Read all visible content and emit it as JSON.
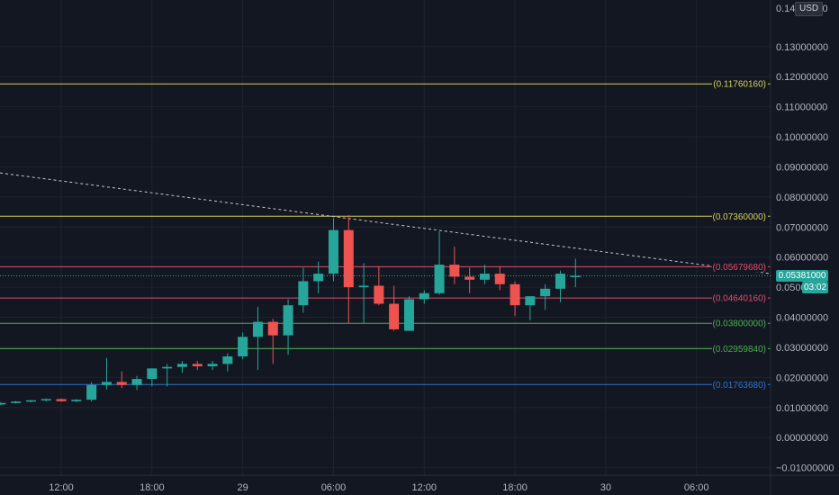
{
  "currency": "USD",
  "top_partial_label": "0.14",
  "top_partial_tail": "00",
  "current_price": "0.05381000",
  "countdown": "03:02",
  "chart_data": {
    "type": "candlestick",
    "title": "",
    "y_ticks": [
      "0.13000000",
      "0.12000000",
      "0.11000000",
      "0.10000000",
      "0.09000000",
      "0.08000000",
      "0.07000000",
      "0.06000000",
      "0.05000000",
      "0.04000000",
      "0.03000000",
      "0.02000000",
      "0.01000000",
      "0.00000000",
      "−0.01000000"
    ],
    "y_tick_values": [
      0.13,
      0.12,
      0.11,
      0.1,
      0.09,
      0.08,
      0.07,
      0.06,
      0.05,
      0.04,
      0.03,
      0.02,
      0.01,
      0.0,
      -0.01
    ],
    "ylim": [
      -0.0125,
      0.1455
    ],
    "x_ticks": [
      "12:00",
      "18:00",
      "29",
      "06:00",
      "12:00",
      "18:00",
      "30",
      "06:00"
    ],
    "x_tick_hours": [
      12,
      18,
      24,
      30,
      36,
      42,
      48,
      54
    ],
    "xlim_hours": [
      7.95,
      58.9
    ],
    "horizontal_levels": [
      {
        "label": "(0.11760160)",
        "value": 0.1176016,
        "color": "#d6cf5a"
      },
      {
        "label": "(0.07360000)",
        "value": 0.0736,
        "color": "#d6cf5a"
      },
      {
        "label": "(0.05679680)",
        "value": 0.0567968,
        "color": "#e04d6e"
      },
      {
        "label": "(0.04640160)",
        "value": 0.0464016,
        "color": "#e04d6e"
      },
      {
        "label": "(0.03800000)",
        "value": 0.038,
        "color": "#4caf50"
      },
      {
        "label": "(0.02959840)",
        "value": 0.0295984,
        "color": "#4caf50"
      },
      {
        "label": "(0.01763680)",
        "value": 0.0176368,
        "color": "#2f73d0"
      }
    ],
    "trendline": {
      "start": {
        "hour": 7.95,
        "value": 0.088
      },
      "end": {
        "hour": 58.9,
        "value": 0.0545
      },
      "color": "#c8c8c8",
      "style": "dashed"
    },
    "current_price_value": 0.05381,
    "candles": [
      {
        "t": 8.0,
        "o": 0.011,
        "h": 0.0118,
        "l": 0.0108,
        "c": 0.0115
      },
      {
        "t": 9.0,
        "o": 0.0115,
        "h": 0.0122,
        "l": 0.0113,
        "c": 0.012
      },
      {
        "t": 10.0,
        "o": 0.012,
        "h": 0.0125,
        "l": 0.0117,
        "c": 0.0124
      },
      {
        "t": 11.0,
        "o": 0.0124,
        "h": 0.013,
        "l": 0.012,
        "c": 0.0128
      },
      {
        "t": 12.0,
        "o": 0.0128,
        "h": 0.013,
        "l": 0.0119,
        "c": 0.0121
      },
      {
        "t": 13.0,
        "o": 0.0121,
        "h": 0.0128,
        "l": 0.0118,
        "c": 0.0126
      },
      {
        "t": 14.0,
        "o": 0.0126,
        "h": 0.0185,
        "l": 0.012,
        "c": 0.0175
      },
      {
        "t": 15.0,
        "o": 0.0175,
        "h": 0.0265,
        "l": 0.016,
        "c": 0.0185
      },
      {
        "t": 16.0,
        "o": 0.0185,
        "h": 0.022,
        "l": 0.0165,
        "c": 0.0175
      },
      {
        "t": 17.0,
        "o": 0.0175,
        "h": 0.0205,
        "l": 0.0158,
        "c": 0.0195
      },
      {
        "t": 18.0,
        "o": 0.0195,
        "h": 0.023,
        "l": 0.017,
        "c": 0.023
      },
      {
        "t": 19.0,
        "o": 0.023,
        "h": 0.0245,
        "l": 0.017,
        "c": 0.0235
      },
      {
        "t": 20.0,
        "o": 0.0235,
        "h": 0.0255,
        "l": 0.0215,
        "c": 0.0245
      },
      {
        "t": 21.0,
        "o": 0.0245,
        "h": 0.0255,
        "l": 0.0225,
        "c": 0.0237
      },
      {
        "t": 22.0,
        "o": 0.0237,
        "h": 0.0255,
        "l": 0.0225,
        "c": 0.0245
      },
      {
        "t": 23.0,
        "o": 0.0245,
        "h": 0.028,
        "l": 0.022,
        "c": 0.027
      },
      {
        "t": 24.0,
        "o": 0.027,
        "h": 0.035,
        "l": 0.026,
        "c": 0.0335
      },
      {
        "t": 25.0,
        "o": 0.0335,
        "h": 0.0435,
        "l": 0.0225,
        "c": 0.0385
      },
      {
        "t": 26.0,
        "o": 0.0385,
        "h": 0.0395,
        "l": 0.0245,
        "c": 0.034
      },
      {
        "t": 27.0,
        "o": 0.034,
        "h": 0.046,
        "l": 0.0275,
        "c": 0.044
      },
      {
        "t": 28.0,
        "o": 0.044,
        "h": 0.0565,
        "l": 0.0415,
        "c": 0.052
      },
      {
        "t": 29.0,
        "o": 0.052,
        "h": 0.0585,
        "l": 0.048,
        "c": 0.0545
      },
      {
        "t": 30.0,
        "o": 0.0545,
        "h": 0.073,
        "l": 0.052,
        "c": 0.069
      },
      {
        "t": 31.0,
        "o": 0.069,
        "h": 0.074,
        "l": 0.038,
        "c": 0.05
      },
      {
        "t": 32.0,
        "o": 0.05,
        "h": 0.058,
        "l": 0.038,
        "c": 0.0505
      },
      {
        "t": 33.0,
        "o": 0.0505,
        "h": 0.057,
        "l": 0.044,
        "c": 0.0445
      },
      {
        "t": 34.0,
        "o": 0.0445,
        "h": 0.0505,
        "l": 0.0355,
        "c": 0.036
      },
      {
        "t": 35.0,
        "o": 0.0355,
        "h": 0.047,
        "l": 0.0355,
        "c": 0.046
      },
      {
        "t": 36.0,
        "o": 0.046,
        "h": 0.049,
        "l": 0.0445,
        "c": 0.048
      },
      {
        "t": 37.0,
        "o": 0.048,
        "h": 0.0685,
        "l": 0.0475,
        "c": 0.0575
      },
      {
        "t": 38.0,
        "o": 0.0575,
        "h": 0.0635,
        "l": 0.051,
        "c": 0.0535
      },
      {
        "t": 39.0,
        "o": 0.0535,
        "h": 0.0565,
        "l": 0.048,
        "c": 0.0525
      },
      {
        "t": 40.0,
        "o": 0.0525,
        "h": 0.0575,
        "l": 0.051,
        "c": 0.0545
      },
      {
        "t": 41.0,
        "o": 0.0545,
        "h": 0.057,
        "l": 0.049,
        "c": 0.051
      },
      {
        "t": 42.0,
        "o": 0.051,
        "h": 0.052,
        "l": 0.0405,
        "c": 0.044
      },
      {
        "t": 43.0,
        "o": 0.044,
        "h": 0.047,
        "l": 0.039,
        "c": 0.047
      },
      {
        "t": 44.0,
        "o": 0.047,
        "h": 0.051,
        "l": 0.0425,
        "c": 0.0495
      },
      {
        "t": 45.0,
        "o": 0.0495,
        "h": 0.0555,
        "l": 0.045,
        "c": 0.0545
      },
      {
        "t": 46.0,
        "o": 0.0535,
        "h": 0.0595,
        "l": 0.05,
        "c": 0.0538
      }
    ]
  }
}
